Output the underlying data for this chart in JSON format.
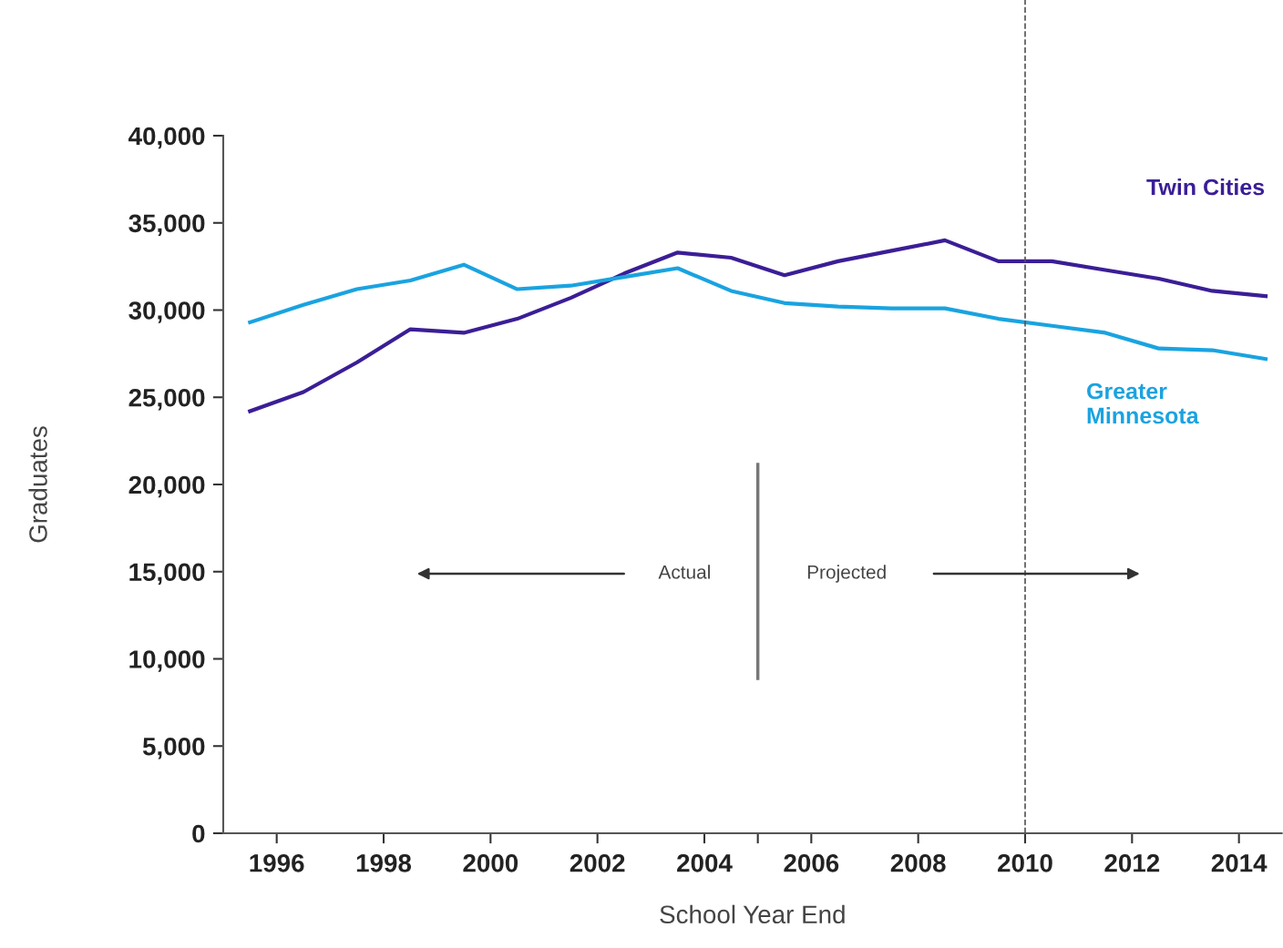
{
  "chart_data": {
    "type": "line",
    "xlabel": "School Year End",
    "ylabel": "Graduates",
    "x": [
      1995.5,
      1996.5,
      1997.5,
      1998.5,
      1999.5,
      2000.5,
      2001.5,
      2002.5,
      2003.5,
      2004.5,
      2005.5,
      2006.5,
      2007.5,
      2008.5,
      2009.5,
      2010.5,
      2011.5,
      2012.5,
      2013.5,
      2014.5
    ],
    "series": [
      {
        "name": "Twin Cities",
        "color": "#3b1e96",
        "values": [
          24200,
          25300,
          27000,
          28900,
          28700,
          29500,
          30700,
          32100,
          33300,
          33000,
          32000,
          32800,
          33400,
          34000,
          32800,
          32800,
          32300,
          31800,
          31100,
          30800
        ]
      },
      {
        "name": "Greater Minnesota",
        "color": "#1aa3e0",
        "values": [
          29300,
          30300,
          31200,
          31700,
          32600,
          31200,
          31400,
          31900,
          32400,
          31100,
          30400,
          30200,
          30100,
          30100,
          29500,
          29100,
          28700,
          27800,
          27700,
          27200
        ]
      }
    ],
    "xlim": [
      1995,
      2014.8
    ],
    "xticks": [
      1996,
      1998,
      2000,
      2002,
      2004,
      {
        "value": 2005,
        "label": null
      },
      2006,
      2008,
      2010,
      2012,
      2014
    ],
    "ylim": [
      0,
      40000
    ],
    "yticks": [
      {
        "value": 0,
        "label": "0"
      },
      {
        "value": 5000,
        "label": "5,000"
      },
      {
        "value": 10000,
        "label": "10,000"
      },
      {
        "value": 15000,
        "label": "15,000"
      },
      {
        "value": 20000,
        "label": "20,000"
      },
      {
        "value": 25000,
        "label": "25,000"
      },
      {
        "value": 30000,
        "label": "30,000"
      },
      {
        "value": 35000,
        "label": "35,000"
      },
      {
        "value": 40000,
        "label": "40,000"
      }
    ],
    "ref_lines": [
      {
        "axis": "x",
        "value": 2010,
        "line_style": "dashed",
        "color": "#555555"
      },
      {
        "axis": "x",
        "value": 2005,
        "line_style": "solid",
        "color": "#777777"
      }
    ],
    "annotations": [
      "Actual",
      "Projected"
    ],
    "grid": false,
    "legend": false,
    "marker": "none",
    "line_style": "solid"
  }
}
